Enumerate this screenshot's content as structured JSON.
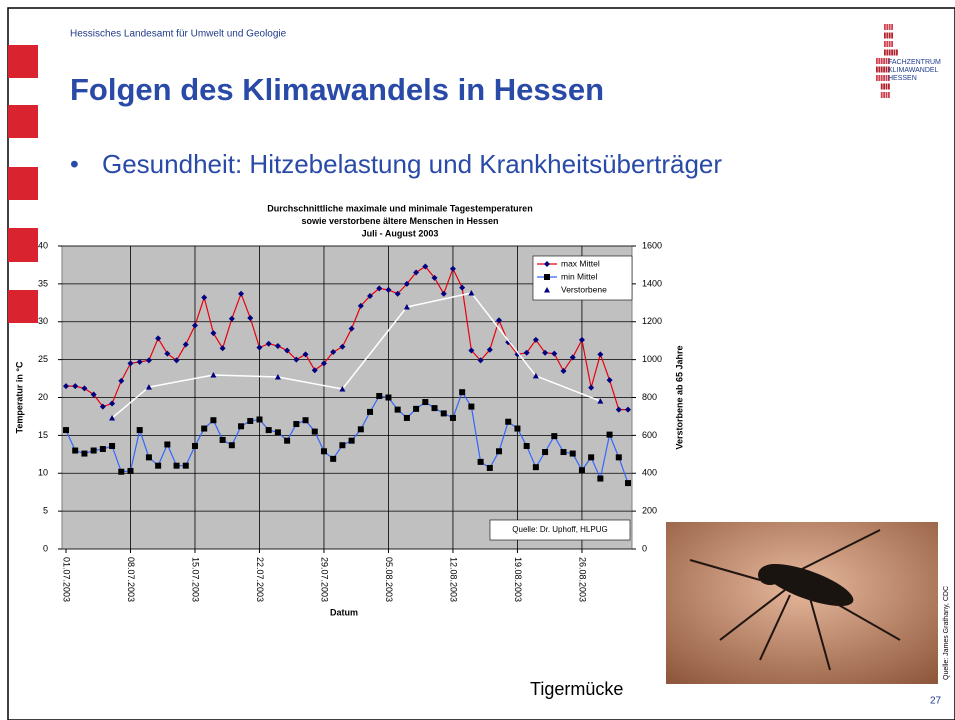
{
  "header": {
    "organization": "Hessisches Landesamt  für Umwelt und Geologie",
    "title": "Folgen des Klimawandels in Hessen",
    "bullet": "Gesundheit: Hitzebelastung und Krankheitsüberträger"
  },
  "logo": {
    "lines": [
      "FACHZENTRUM",
      "KLIMAWANDEL",
      "HESSEN"
    ]
  },
  "photo": {
    "caption": "Tigermücke",
    "source": "Quelle: James Grathany, CDC"
  },
  "page_number": "27",
  "chart_data": {
    "type": "line",
    "title": [
      "Durchschnittliche maximale und minimale Tagestemperaturen",
      "sowie verstorbene ältere Menschen in Hessen",
      "Juli - August 2003"
    ],
    "x_label": "Datum",
    "y_label": "Temperatur in °C",
    "y2_label": "Verstorbene ab 65 Jahre",
    "annotation": "Quelle: Dr. Uphoff, HLPUG",
    "categories": [
      "01.07.2003",
      null,
      null,
      null,
      null,
      null,
      null,
      "08.07.2003",
      null,
      null,
      null,
      null,
      null,
      null,
      "15.07.2003",
      null,
      null,
      null,
      null,
      null,
      null,
      "22.07.2003",
      null,
      null,
      null,
      null,
      null,
      null,
      "29.07.2003",
      null,
      null,
      null,
      null,
      null,
      null,
      "05.08.2003",
      null,
      null,
      null,
      null,
      null,
      null,
      "12.08.2003",
      null,
      null,
      null,
      null,
      null,
      null,
      "19.08.2003",
      null,
      null,
      null,
      null,
      null,
      null,
      "26.08.2003",
      null,
      null,
      null,
      null,
      null
    ],
    "ylim": [
      0,
      40
    ],
    "yticks": [
      0,
      5,
      10,
      15,
      20,
      25,
      30,
      35,
      40
    ],
    "y2lim": [
      0,
      1600
    ],
    "y2ticks": [
      0,
      200,
      400,
      600,
      800,
      1000,
      1200,
      1400,
      1600
    ],
    "grid": true,
    "legend": "top-right",
    "series": [
      {
        "name": "max Mittel",
        "color": "#e8000b",
        "marker": "diamond",
        "marker_color": "#000080",
        "values": [
          21.5,
          21.5,
          21.2,
          20.4,
          18.8,
          19.2,
          22.2,
          24.5,
          24.7,
          24.9,
          27.8,
          25.8,
          24.9,
          27,
          29.5,
          33.2,
          28.5,
          26.5,
          30.4,
          33.7,
          30.5,
          26.6,
          27.1,
          26.8,
          26.2,
          25,
          25.7,
          23.6,
          24.5,
          26,
          26.7,
          29.1,
          32.1,
          33.4,
          34.4,
          34.2,
          33.7,
          35,
          36.5,
          37.3,
          35.8,
          33.7,
          37,
          34.5,
          26.2,
          24.9,
          26.3,
          30.2,
          27.3,
          25.7,
          25.9,
          27.6,
          25.9,
          25.8,
          23.5,
          25.3,
          27.6,
          21.3,
          25.7,
          22.3,
          18.4,
          18.4
        ]
      },
      {
        "name": "min Mittel",
        "color": "#3366ff",
        "marker": "square",
        "marker_color": "#000000",
        "values": [
          15.7,
          13,
          12.6,
          13,
          13.2,
          13.6,
          10.2,
          10.3,
          15.7,
          12.1,
          11,
          13.8,
          11,
          11,
          13.6,
          15.9,
          17,
          14.4,
          13.7,
          16.2,
          16.9,
          17.1,
          15.7,
          15.4,
          14.3,
          16.5,
          17,
          15.5,
          12.9,
          11.9,
          13.7,
          14.3,
          15.8,
          18.1,
          20.2,
          20,
          18.4,
          17.3,
          18.5,
          19.4,
          18.6,
          17.9,
          17.3,
          20.7,
          18.8,
          11.5,
          10.7,
          12.9,
          16.8,
          15.9,
          13.6,
          10.8,
          12.8,
          14.9,
          12.8,
          12.6,
          10.4,
          12.1,
          9.3,
          15.1,
          12.1,
          8.7
        ]
      },
      {
        "name": "Verstorbene",
        "color": "#ffffff",
        "marker": "triangle",
        "marker_color": "#000080",
        "axis": "y2",
        "values": [
          null,
          null,
          null,
          null,
          null,
          692,
          null,
          null,
          null,
          855,
          null,
          null,
          null,
          null,
          null,
          null,
          919,
          null,
          null,
          null,
          null,
          null,
          null,
          908,
          null,
          null,
          null,
          null,
          null,
          null,
          845,
          null,
          null,
          null,
          null,
          null,
          null,
          1278,
          null,
          null,
          null,
          null,
          null,
          null,
          1352,
          null,
          null,
          null,
          null,
          null,
          null,
          914,
          null,
          null,
          null,
          null,
          null,
          null,
          781,
          null,
          null,
          null
        ]
      }
    ]
  }
}
